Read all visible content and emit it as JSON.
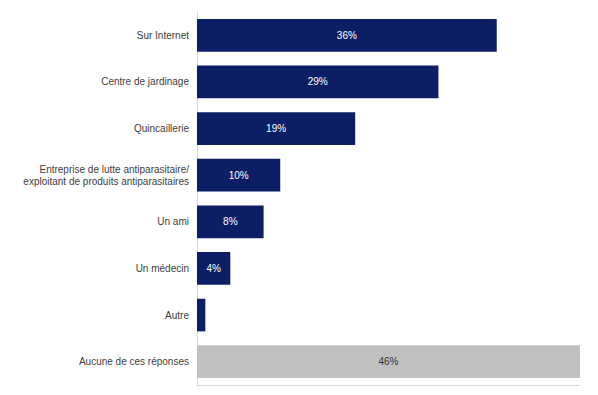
{
  "chart_data": {
    "type": "bar",
    "orientation": "horizontal",
    "categories": [
      "Sur Internet",
      "Centre de jardinage",
      "Quincaillerie",
      "Entreprise de lutte antiparasitaire/exploitant de produits antiparasitaires",
      "Un ami",
      "Un médecin",
      "Autre",
      "Aucune de ces réponses"
    ],
    "values": [
      36,
      29,
      19,
      10,
      8,
      4,
      1,
      46
    ],
    "value_labels": [
      "36%",
      "29%",
      "19%",
      "10%",
      "8%",
      "4%",
      null,
      "46%"
    ],
    "colors": [
      "#0c1f66",
      "#0c1f66",
      "#0c1f66",
      "#0c1f66",
      "#0c1f66",
      "#0c1f66",
      "#0c1f66",
      "#c0c0c0"
    ],
    "xlim": [
      0,
      46
    ],
    "xticks": [],
    "data_labels": true,
    "tick_labels": "y",
    "grid": false
  }
}
